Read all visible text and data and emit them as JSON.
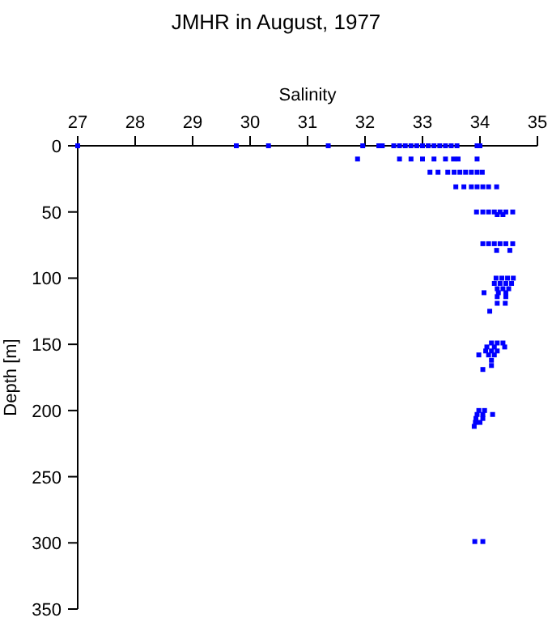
{
  "chart_data": {
    "type": "scatter",
    "title": "JMHR in August, 1977",
    "xlabel": "Salinity",
    "ylabel": "Depth [m]",
    "xlim": [
      27,
      35
    ],
    "xticks": [
      27,
      28,
      29,
      30,
      31,
      32,
      33,
      34,
      35
    ],
    "ylim": [
      350,
      0
    ],
    "yticks": [
      0,
      50,
      100,
      150,
      200,
      250,
      300,
      350
    ],
    "grid": false,
    "marker": "square",
    "series": [
      {
        "color": "#0000ff",
        "x": [
          27.0,
          29.76,
          30.32,
          31.36,
          31.96,
          32.24,
          32.3,
          32.5,
          32.6,
          32.7,
          32.8,
          32.9,
          33.0,
          33.1,
          33.2,
          33.3,
          33.4,
          33.5,
          33.6,
          33.95,
          34.0,
          31.87,
          32.6,
          32.8,
          33.0,
          33.2,
          33.4,
          33.54,
          33.62,
          33.95,
          33.13,
          33.27,
          33.44,
          33.55,
          33.65,
          33.75,
          33.85,
          33.95,
          34.04,
          33.58,
          33.72,
          33.85,
          33.95,
          34.05,
          34.15,
          34.29,
          33.94,
          34.05,
          34.15,
          34.25,
          34.35,
          34.45,
          34.57,
          34.3,
          34.4,
          34.05,
          34.15,
          34.25,
          34.35,
          34.45,
          34.57,
          34.29,
          34.52,
          34.28,
          34.38,
          34.48,
          34.58,
          34.25,
          34.35,
          34.45,
          34.55,
          34.3,
          34.4,
          34.5,
          34.07,
          34.32,
          34.45,
          34.3,
          34.45,
          34.3,
          34.44,
          34.17,
          34.2,
          34.3,
          34.4,
          34.12,
          34.25,
          34.43,
          34.1,
          34.2,
          34.3,
          33.98,
          34.15,
          34.25,
          34.2,
          34.2,
          34.05,
          33.98,
          34.08,
          33.95,
          34.05,
          34.22,
          33.93,
          34.05,
          33.92,
          34.0,
          33.9,
          33.91,
          34.05
        ],
        "values": [
          0,
          0,
          0,
          0,
          0,
          0,
          0,
          0,
          0,
          0,
          0,
          0,
          0,
          0,
          0,
          0,
          0,
          0,
          0,
          0,
          0,
          10,
          10,
          10,
          10,
          10,
          10,
          10,
          10,
          10,
          20,
          20,
          20,
          20,
          20,
          20,
          20,
          20,
          20,
          31,
          31,
          31,
          31,
          31,
          31,
          31,
          50,
          50,
          50,
          50,
          50,
          50,
          50,
          52,
          52,
          74,
          74,
          74,
          74,
          74,
          74,
          79,
          79,
          100,
          100,
          100,
          100,
          104,
          104,
          104,
          104,
          108,
          108,
          108,
          111,
          111,
          111,
          114,
          114,
          119,
          119,
          125,
          149,
          149,
          149,
          152,
          152,
          152,
          155,
          155,
          155,
          158,
          158,
          158,
          162,
          166,
          169,
          200,
          200,
          203,
          203,
          203,
          206,
          206,
          209,
          209,
          212,
          299,
          299
        ]
      }
    ]
  }
}
